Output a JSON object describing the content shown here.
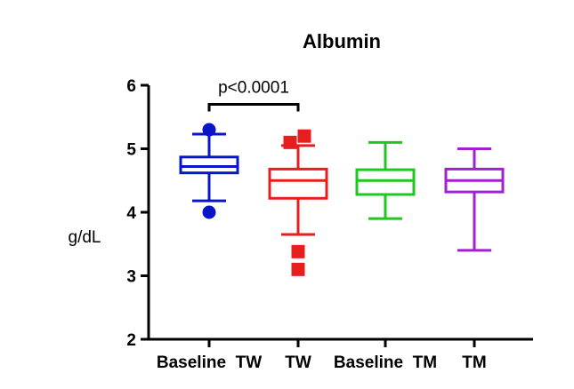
{
  "chart_data": {
    "type": "boxplot",
    "title": "Albumin",
    "xlabel": "",
    "ylabel": "g/dL",
    "ylim": [
      2,
      6
    ],
    "yticks": [
      2,
      3,
      4,
      5,
      6
    ],
    "grid": false,
    "legend": "none",
    "categories": [
      "Baseline  TW",
      "TW",
      "Baseline  TM",
      "TM"
    ],
    "series": [
      {
        "name": "Baseline  TW",
        "color": "#0a14c8",
        "whisker_low": 4.18,
        "q1": 4.62,
        "median": 4.72,
        "q3": 4.87,
        "whisker_high": 5.23,
        "outlier_marker": "circle",
        "outliers": [
          4.0,
          5.3
        ]
      },
      {
        "name": "TW",
        "color": "#e61e1e",
        "whisker_low": 3.65,
        "q1": 4.22,
        "median": 4.5,
        "q3": 4.68,
        "whisker_high": 5.05,
        "outlier_marker": "square",
        "outliers": [
          3.1,
          3.38,
          5.1,
          5.2
        ]
      },
      {
        "name": "Baseline  TM",
        "color": "#1ec81e",
        "whisker_low": 3.9,
        "q1": 4.28,
        "median": 4.5,
        "q3": 4.67,
        "whisker_high": 5.1,
        "outlier_marker": "none",
        "outliers": []
      },
      {
        "name": "TM",
        "color": "#a020d2",
        "whisker_low": 3.4,
        "q1": 4.32,
        "median": 4.5,
        "q3": 4.68,
        "whisker_high": 5.0,
        "outlier_marker": "none",
        "outliers": []
      }
    ],
    "annotations": [
      {
        "text": "p<0.0001",
        "from": "Baseline  TW",
        "to": "TW",
        "level": 5.7
      }
    ]
  }
}
